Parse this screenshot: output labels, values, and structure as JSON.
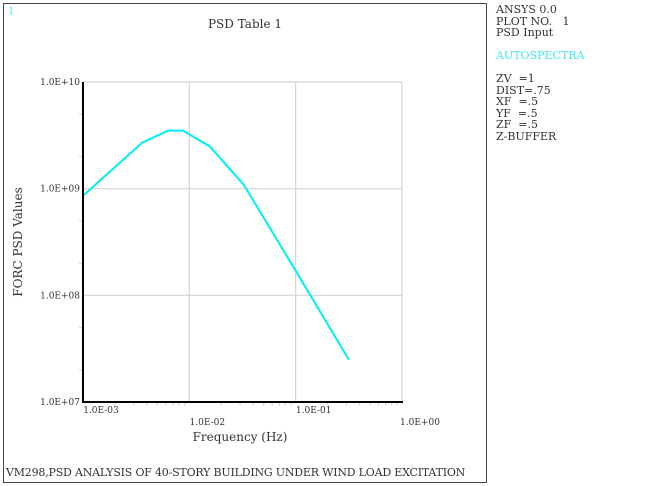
{
  "window": {
    "number": "1",
    "title": "PSD Table  1"
  },
  "caption": "VM298,PSD ANALYSIS OF 40-STORY BUILDING UNDER WIND LOAD EXCITATION",
  "legend": {
    "lines": [
      "ANSYS 0.0",
      "PLOT NO.   1",
      "PSD Input",
      "",
      "AUTOSPECTRA",
      "",
      "ZV  =1",
      "DIST=.75",
      "XF  =.5",
      "YF  =.5",
      "ZF  =.5",
      "Z-BUFFER"
    ],
    "highlight_index": 4
  },
  "colors": {
    "curve": "#00f0f0",
    "grid": "#d4d4d4",
    "axis": "#000000",
    "accent_text": "#44e8ee"
  },
  "chart_data": {
    "type": "line",
    "title": "PSD Table  1",
    "xlabel": "Frequency  (Hz)",
    "ylabel": "FORC PSD Values",
    "xscale": "log",
    "yscale": "log",
    "xlim": [
      0.001,
      1.0
    ],
    "ylim": [
      10000000.0,
      10000000000.0
    ],
    "grid": true,
    "x_tick_labels": [
      "1.0E-03",
      "1.0E-02",
      "1.0E-01",
      "1.0E+00"
    ],
    "y_tick_labels": [
      "1.0E+07",
      "1.0E+08",
      "1.0E+09",
      "1.0E+10"
    ],
    "series": [
      {
        "name": "AUTOSPECTRA",
        "x": [
          0.001,
          0.0036,
          0.0063,
          0.0087,
          0.0155,
          0.0323,
          0.1,
          0.316
        ],
        "y": [
          860000000.0,
          2700000000.0,
          3500000000.0,
          3500000000.0,
          2500000000.0,
          1100000000.0,
          170000000.0,
          25000000.0
        ]
      }
    ]
  }
}
